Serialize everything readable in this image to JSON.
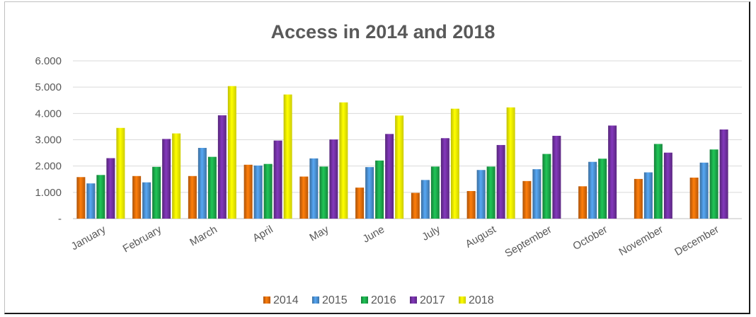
{
  "chart_data": {
    "type": "bar",
    "title": "Access in 2014 and 2018",
    "xlabel": "",
    "ylabel": "",
    "ylim": [
      0,
      6000
    ],
    "yticks": [
      {
        "value": 0,
        "label": "-"
      },
      {
        "value": 1000,
        "label": "1.000"
      },
      {
        "value": 2000,
        "label": "2.000"
      },
      {
        "value": 3000,
        "label": "3.000"
      },
      {
        "value": 4000,
        "label": "4.000"
      },
      {
        "value": 5000,
        "label": "5.000"
      },
      {
        "value": 6000,
        "label": "6.000"
      }
    ],
    "grid": true,
    "legend_position": "bottom",
    "categories": [
      "January",
      "February",
      "March",
      "April",
      "May",
      "June",
      "July",
      "August",
      "September",
      "October",
      "November",
      "December"
    ],
    "series": [
      {
        "name": "2014",
        "color": "#e36c09",
        "values": [
          1580,
          1620,
          1620,
          2050,
          1600,
          1180,
          980,
          1050,
          1430,
          1230,
          1510,
          1560
        ]
      },
      {
        "name": "2015",
        "color": "#4a8ed0",
        "values": [
          1340,
          1380,
          2690,
          2020,
          2290,
          1960,
          1470,
          1850,
          1880,
          2160,
          1760,
          2130
        ]
      },
      {
        "name": "2016",
        "color": "#1ba84a",
        "values": [
          1660,
          1970,
          2350,
          2080,
          1980,
          2210,
          1980,
          1980,
          2460,
          2280,
          2840,
          2630
        ]
      },
      {
        "name": "2017",
        "color": "#7030a0",
        "values": [
          2300,
          3030,
          3930,
          2970,
          3010,
          3220,
          3060,
          2800,
          3150,
          3540,
          2510,
          3390
        ]
      },
      {
        "name": "2018",
        "color": "#ffff00",
        "values": [
          3450,
          3240,
          5040,
          4720,
          4420,
          3920,
          4180,
          4230,
          null,
          null,
          null,
          null
        ]
      }
    ]
  }
}
